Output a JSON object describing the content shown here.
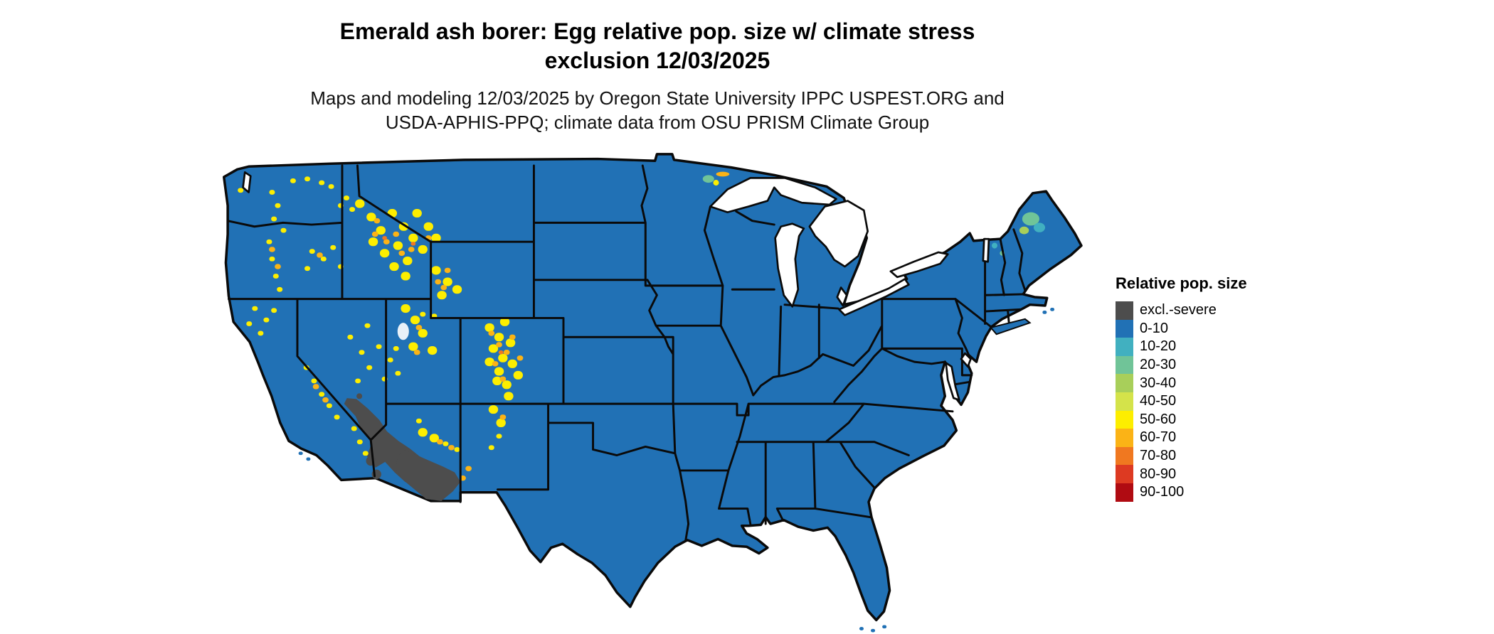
{
  "title": {
    "line1": "Emerald ash borer: Egg relative pop. size w/ climate stress",
    "line2": "exclusion 12/03/2025"
  },
  "subtitle": {
    "line1": "Maps and modeling 12/03/2025 by Oregon State University IPPC USPEST.ORG and",
    "line2": "USDA-APHIS-PPQ; climate data from OSU PRISM Climate Group"
  },
  "legend": {
    "title": "Relative pop. size",
    "items": [
      {
        "label": "excl.-severe",
        "color": "#4d4d4d"
      },
      {
        "label": "0-10",
        "color": "#2171b5"
      },
      {
        "label": "10-20",
        "color": "#41b0c0"
      },
      {
        "label": "20-30",
        "color": "#70c498"
      },
      {
        "label": "30-40",
        "color": "#a8cf5a"
      },
      {
        "label": "40-50",
        "color": "#d4e34a"
      },
      {
        "label": "50-60",
        "color": "#fdee00"
      },
      {
        "label": "60-70",
        "color": "#fbb316"
      },
      {
        "label": "70-80",
        "color": "#f07820"
      },
      {
        "label": "80-90",
        "color": "#dd3a22"
      },
      {
        "label": "90-100",
        "color": "#b00b12"
      }
    ]
  },
  "map": {
    "region_label": "Contiguous United States",
    "base_category": "0-10",
    "water_color": "#ffffff",
    "border_color": "#0a0a0a"
  }
}
